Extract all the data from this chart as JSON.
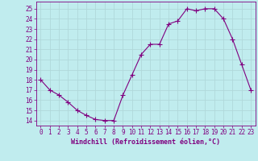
{
  "x": [
    0,
    1,
    2,
    3,
    4,
    5,
    6,
    7,
    8,
    9,
    10,
    11,
    12,
    13,
    14,
    15,
    16,
    17,
    18,
    19,
    20,
    21,
    22,
    23
  ],
  "y": [
    18,
    17,
    16.5,
    15.8,
    15,
    14.5,
    14.1,
    14,
    14,
    16.5,
    18.5,
    20.5,
    21.5,
    21.5,
    23.5,
    23.8,
    25,
    24.8,
    25,
    25,
    24,
    22,
    19.5,
    17
  ],
  "line_color": "#800080",
  "marker": "+",
  "marker_size": 4,
  "line_width": 0.8,
  "bg_color": "#c0ecee",
  "grid_color": "#b0d8da",
  "xlabel": "Windchill (Refroidissement éolien,°C)",
  "xlabel_color": "#800080",
  "tick_color": "#800080",
  "label_fontsize": 5.5,
  "xlabel_fontsize": 6.0,
  "ylim": [
    13.5,
    25.7
  ],
  "xlim": [
    -0.5,
    23.5
  ],
  "yticks": [
    14,
    15,
    16,
    17,
    18,
    19,
    20,
    21,
    22,
    23,
    24,
    25
  ],
  "xticks": [
    0,
    1,
    2,
    3,
    4,
    5,
    6,
    7,
    8,
    9,
    10,
    11,
    12,
    13,
    14,
    15,
    16,
    17,
    18,
    19,
    20,
    21,
    22,
    23
  ]
}
